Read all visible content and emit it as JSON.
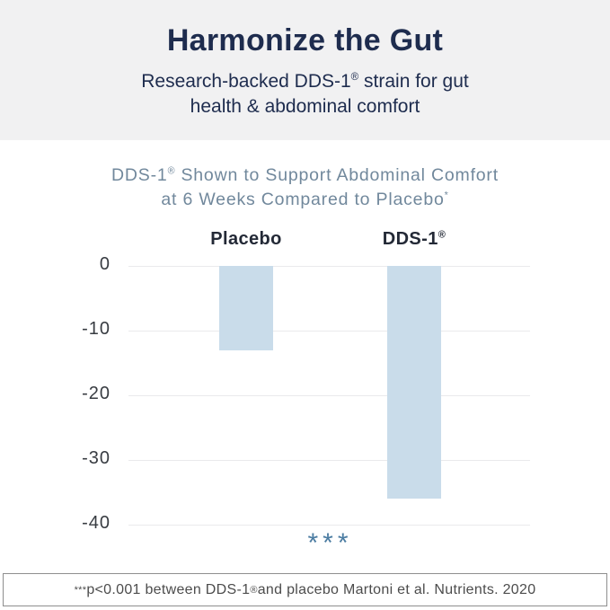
{
  "header": {
    "title": "Harmonize the Gut",
    "subtitle_line1_pre": "Research-backed DDS-1",
    "subtitle_sup": "®",
    "subtitle_line1_post": " strain for gut",
    "subtitle_line2": "health & abdominal comfort"
  },
  "chart": {
    "title_line1_pre": "DDS-1",
    "title_line1_sup": "®",
    "title_line1_post": " Shown to Support Abdominal Comfort",
    "title_line2": "at 6 Weeks Compared to Placebo",
    "title_line2_sup": "*"
  },
  "chart_data": {
    "type": "bar",
    "title": "DDS-1® Shown to Support Abdominal Comfort at 6 Weeks Compared to Placebo*",
    "categories": [
      {
        "label": "Placebo",
        "sup": ""
      },
      {
        "label": "DDS-1",
        "sup": "®"
      }
    ],
    "values": [
      -13,
      -36
    ],
    "xlabel": "",
    "ylabel": "",
    "ylim": [
      -40,
      0
    ],
    "yticks": [
      0,
      -10,
      -20,
      -30,
      -40
    ],
    "grid": true,
    "legend": "none",
    "bar_color": "#c9dcea",
    "significance": "***",
    "significance_color": "#4b7ca2"
  },
  "footer": {
    "sup1": "***",
    "text_pre": "p<0.001 between DDS-1",
    "sup2": "®",
    "text_post": " and placebo Martoni et al. Nutrients. 2020"
  },
  "colors": {
    "header_bg": "#f1f1f2",
    "navy_text": "#1e2c4e",
    "chart_title_text": "#71889c",
    "category_text": "#232936",
    "tick_text": "#383c42",
    "bar_fill": "#c9dcea",
    "gridline": "#eaeaec",
    "significance_blue": "#4b7ca2",
    "footnote_text": "#4c4c4c",
    "footnote_border": "#8e8e8e"
  }
}
